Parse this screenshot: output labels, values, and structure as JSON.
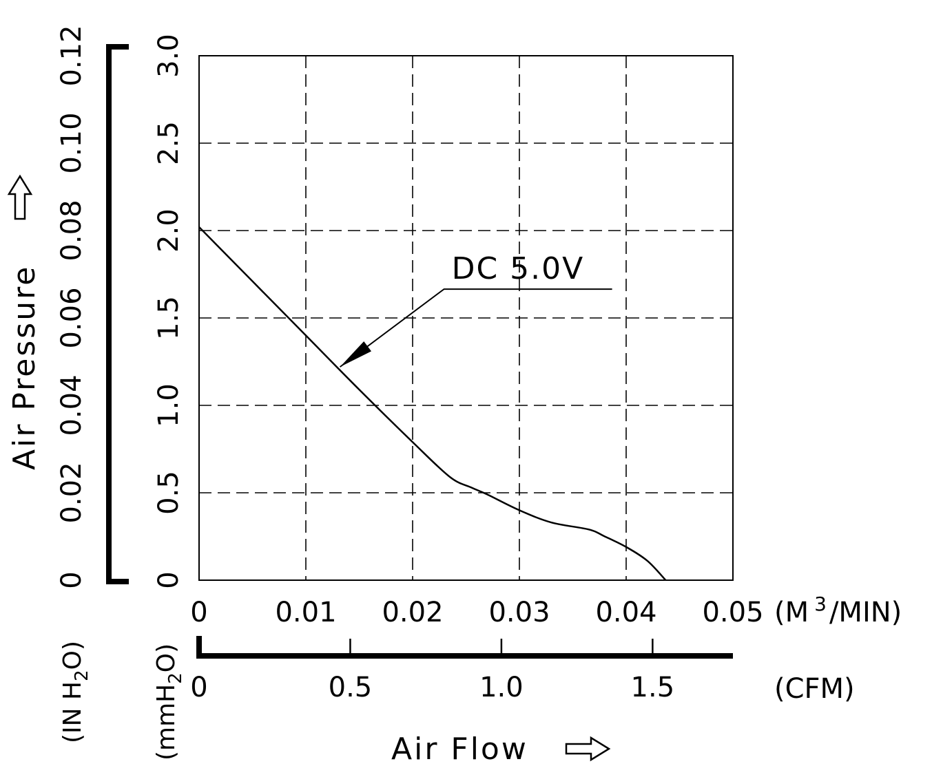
{
  "chart_data": {
    "type": "line",
    "y_axis_label": "Air Pressure",
    "y_unit_mm": "(mmH",
    "y_unit_mm_sub": "2",
    "y_unit_mm_end": "O)",
    "y_unit_in": "(IN  H",
    "y_unit_in_sub": "2",
    "y_unit_in_end": "O)",
    "x_axis_label": "Air Flow",
    "x_unit_m3": "(M",
    "x_unit_m3_sup": "3",
    "x_unit_m3_end": "/MIN)",
    "x_unit_cfm": "(CFM)",
    "xlim": [
      0,
      0.05
    ],
    "ylim": [
      0,
      3.0
    ],
    "x_ticks": [
      "0",
      "0.01",
      "0.02",
      "0.03",
      "0.04",
      "0.05"
    ],
    "cfm_ticks": [
      "0",
      "0.5",
      "1.0",
      "1.5"
    ],
    "y_ticks_mm": [
      "0",
      "0.5",
      "1.0",
      "1.5",
      "2.0",
      "2.5",
      "3.0"
    ],
    "y_ticks_in": [
      "0",
      "0.02",
      "0.04",
      "0.06",
      "0.08",
      "0.10",
      "0.12"
    ],
    "grid": true,
    "series": [
      {
        "name": "DC  5.0V",
        "x": [
          0,
          0.005,
          0.01,
          0.015,
          0.02,
          0.0235,
          0.0255,
          0.027,
          0.03,
          0.033,
          0.0365,
          0.038,
          0.04,
          0.042,
          0.0437
        ],
        "y": [
          2.02,
          1.71,
          1.4,
          1.09,
          0.79,
          0.59,
          0.53,
          0.49,
          0.4,
          0.33,
          0.29,
          0.25,
          0.19,
          0.11,
          0.0
        ]
      }
    ],
    "annotation": {
      "text": "DC  5.0V",
      "x": 0.0132,
      "y": 1.22
    }
  }
}
